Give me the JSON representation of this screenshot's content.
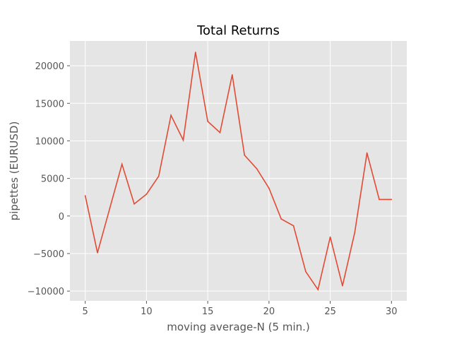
{
  "chart_data": {
    "type": "line",
    "title": "Total Returns",
    "xlabel": "moving average-N  (5 min.)",
    "ylabel": "pipettes (EURUSD)",
    "xlim": [
      3.75,
      31.25
    ],
    "ylim": [
      -11300,
      23300
    ],
    "xticks": [
      5,
      10,
      15,
      20,
      25,
      30
    ],
    "yticks": [
      -10000,
      -5000,
      0,
      5000,
      10000,
      15000,
      20000
    ],
    "grid": true,
    "legend": "none",
    "colors": {
      "background": "#e5e5e5",
      "grid": "#ffffff",
      "line": "#e24a33"
    },
    "series": [
      {
        "x": [
          5,
          6,
          7,
          8,
          9,
          10,
          11,
          12,
          13,
          14,
          15,
          16,
          17,
          18,
          19,
          20,
          21,
          22,
          23,
          24,
          25,
          26,
          27,
          28,
          29,
          30
        ],
        "values": [
          2700,
          -4900,
          1000,
          6900,
          1600,
          2900,
          5300,
          13400,
          10100,
          21800,
          12600,
          11100,
          18800,
          8100,
          6300,
          3700,
          -400,
          -1300,
          -7400,
          -9800,
          -2800,
          -9300,
          -2200,
          8400,
          2200,
          2200
        ]
      }
    ]
  }
}
